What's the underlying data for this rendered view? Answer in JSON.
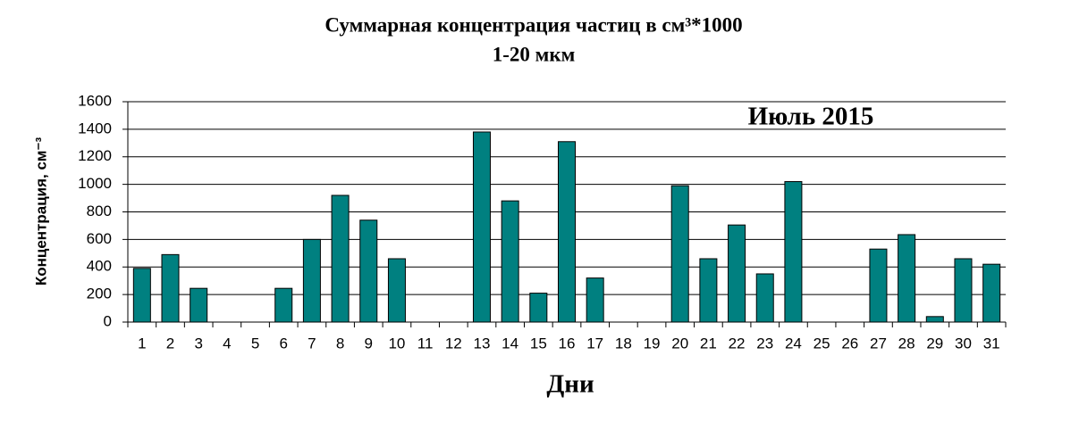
{
  "chart_data": {
    "type": "bar",
    "title": "Суммарная концентрация частиц в см³*1000",
    "subtitle": "1-20 мкм",
    "annotation": "Июль 2015",
    "x_label": "Дни",
    "y_label": "Концентрация, см⁻³",
    "categories": [
      "1",
      "2",
      "3",
      "4",
      "5",
      "6",
      "7",
      "8",
      "9",
      "10",
      "11",
      "12",
      "13",
      "14",
      "15",
      "16",
      "17",
      "18",
      "19",
      "20",
      "21",
      "22",
      "23",
      "24",
      "25",
      "26",
      "27",
      "28",
      "29",
      "30",
      "31"
    ],
    "values": [
      390,
      490,
      245,
      null,
      null,
      245,
      600,
      920,
      740,
      460,
      null,
      null,
      1380,
      880,
      210,
      1310,
      320,
      null,
      null,
      990,
      460,
      705,
      350,
      1020,
      null,
      null,
      530,
      635,
      40,
      460,
      420
    ],
    "color": "#008080",
    "ylim": [
      0,
      1600
    ],
    "yticks": [
      0,
      200,
      400,
      600,
      800,
      1000,
      1200,
      1400,
      1600
    ],
    "grid": true
  }
}
